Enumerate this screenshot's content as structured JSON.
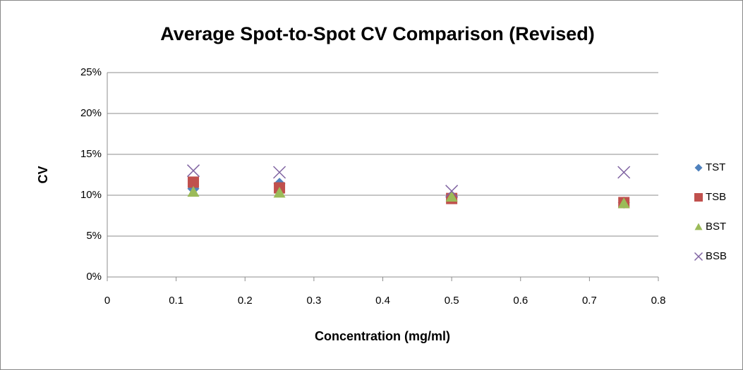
{
  "chart_data": {
    "type": "scatter",
    "title": "Average Spot-to-Spot CV Comparison (Revised)",
    "x_label": "Concentration (mg/ml)",
    "y_label": "CV",
    "x": [
      0.125,
      0.25,
      0.5,
      0.75
    ],
    "series": [
      {
        "name": "TST",
        "color": "#4f81bd",
        "marker": "diamond",
        "values": [
          10.8,
          11.4,
          9.7,
          9.1
        ]
      },
      {
        "name": "TSB",
        "color": "#c0504d",
        "marker": "square",
        "values": [
          11.6,
          10.9,
          9.6,
          9.1
        ]
      },
      {
        "name": "BST",
        "color": "#9bbb59",
        "marker": "triangle",
        "values": [
          10.4,
          10.3,
          9.8,
          9.0
        ]
      },
      {
        "name": "BSB",
        "color": "#8064a2",
        "marker": "cross",
        "values": [
          13.0,
          12.8,
          10.5,
          12.8
        ]
      }
    ],
    "xlim": [
      0,
      0.8
    ],
    "xticks": [
      0,
      0.1,
      0.2,
      0.3,
      0.4,
      0.5,
      0.6,
      0.7,
      0.8
    ],
    "ylim": [
      0,
      25
    ],
    "yticks": [
      {
        "value": 0,
        "label": "0%"
      },
      {
        "value": 5,
        "label": "5%"
      },
      {
        "value": 10,
        "label": "10%"
      },
      {
        "value": 15,
        "label": "15%"
      },
      {
        "value": 20,
        "label": "20%"
      },
      {
        "value": 25,
        "label": "25%"
      }
    ],
    "grid": true,
    "legend": "right"
  }
}
